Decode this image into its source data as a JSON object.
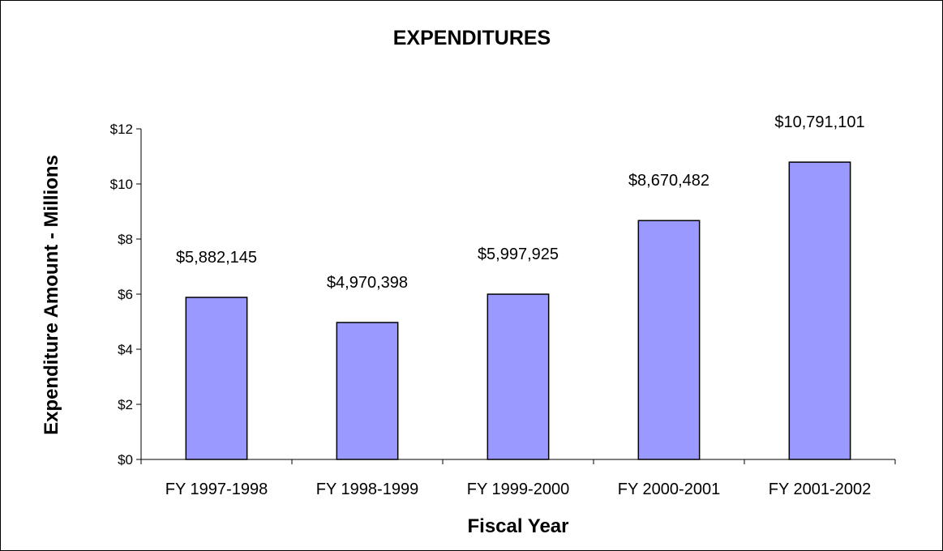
{
  "chart_data": {
    "type": "bar",
    "title": "EXPENDITURES",
    "xlabel": "Fiscal Year",
    "ylabel": "Expenditure Amount - Millions",
    "categories": [
      "FY 1997-1998",
      "FY 1998-1999",
      "FY 1999-2000",
      "FY 2000-2001",
      "FY 2001-2002"
    ],
    "values": [
      5.882145,
      4.970398,
      5.997925,
      8.670482,
      10.791101
    ],
    "data_labels": [
      "$5,882,145",
      "$4,970,398",
      "$5,997,925",
      "$8,670,482",
      "$10,791,101"
    ],
    "ylim": [
      0,
      12
    ],
    "yticks": [
      0,
      2,
      4,
      6,
      8,
      10,
      12
    ],
    "ytick_labels": [
      "$0",
      "$2",
      "$4",
      "$6",
      "$8",
      "$10",
      "$12"
    ],
    "grid": false,
    "legend": "none",
    "colors": {
      "bar_fill": "#9999ff",
      "bar_stroke": "#000000",
      "axis": "#000000"
    }
  }
}
